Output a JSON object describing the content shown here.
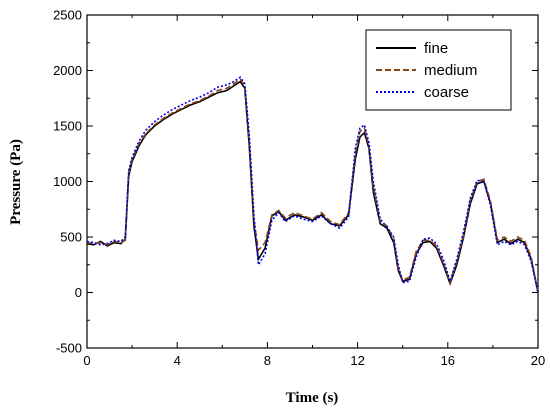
{
  "chart_data": {
    "type": "line",
    "title": "",
    "xlabel": "Time (s)",
    "ylabel": "Pressure (Pa)",
    "xlim": [
      0,
      20
    ],
    "ylim": [
      -500,
      2500
    ],
    "x_ticks": [
      0,
      4,
      8,
      12,
      16,
      20
    ],
    "y_ticks": [
      -500,
      0,
      500,
      1000,
      1500,
      2000,
      2500
    ],
    "grid": false,
    "legend_position": "top-right",
    "series": [
      {
        "name": "fine",
        "color": "#000000",
        "style": "solid",
        "x": [
          0,
          0.3,
          0.6,
          0.9,
          1.2,
          1.5,
          1.7,
          1.85,
          2.0,
          2.3,
          2.6,
          3.0,
          3.4,
          3.8,
          4.2,
          4.6,
          5.0,
          5.4,
          5.8,
          6.2,
          6.5,
          6.8,
          7.0,
          7.2,
          7.4,
          7.6,
          7.9,
          8.2,
          8.5,
          8.8,
          9.2,
          9.6,
          10.0,
          10.4,
          10.8,
          11.2,
          11.6,
          11.9,
          12.1,
          12.3,
          12.5,
          12.7,
          13.0,
          13.3,
          13.6,
          13.8,
          14.0,
          14.3,
          14.6,
          14.9,
          15.2,
          15.5,
          15.8,
          16.1,
          16.4,
          16.7,
          17.0,
          17.3,
          17.6,
          17.9,
          18.2,
          18.5,
          18.8,
          19.1,
          19.4,
          19.7,
          20.0
        ],
        "y": [
          440,
          430,
          460,
          420,
          450,
          440,
          480,
          1050,
          1180,
          1320,
          1420,
          1500,
          1560,
          1610,
          1650,
          1690,
          1720,
          1760,
          1800,
          1820,
          1860,
          1900,
          1840,
          1300,
          600,
          300,
          400,
          690,
          730,
          650,
          700,
          680,
          650,
          700,
          620,
          600,
          700,
          1200,
          1400,
          1440,
          1300,
          900,
          620,
          580,
          450,
          200,
          100,
          120,
          350,
          450,
          460,
          400,
          250,
          80,
          250,
          500,
          800,
          980,
          1000,
          800,
          450,
          480,
          440,
          480,
          450,
          300,
          0
        ]
      },
      {
        "name": "medium",
        "color": "#8b4513",
        "style": "dashed",
        "x": [
          0,
          0.3,
          0.6,
          0.9,
          1.2,
          1.5,
          1.7,
          1.85,
          2.0,
          2.3,
          2.6,
          3.0,
          3.4,
          3.8,
          4.2,
          4.6,
          5.0,
          5.4,
          5.8,
          6.2,
          6.5,
          6.8,
          7.0,
          7.2,
          7.4,
          7.6,
          7.9,
          8.2,
          8.5,
          8.8,
          9.2,
          9.6,
          10.0,
          10.4,
          10.8,
          11.2,
          11.6,
          11.9,
          12.1,
          12.3,
          12.5,
          12.7,
          13.0,
          13.3,
          13.6,
          13.8,
          14.0,
          14.3,
          14.6,
          14.9,
          15.2,
          15.5,
          15.8,
          16.1,
          16.4,
          16.7,
          17.0,
          17.3,
          17.6,
          17.9,
          18.2,
          18.5,
          18.8,
          19.1,
          19.4,
          19.7,
          20.0
        ],
        "y": [
          450,
          440,
          450,
          430,
          460,
          450,
          470,
          1080,
          1200,
          1340,
          1430,
          1510,
          1570,
          1620,
          1660,
          1700,
          1730,
          1770,
          1820,
          1840,
          1880,
          1920,
          1860,
          1350,
          650,
          380,
          450,
          700,
          740,
          670,
          720,
          690,
          660,
          720,
          640,
          610,
          720,
          1250,
          1450,
          1480,
          1320,
          950,
          640,
          600,
          480,
          220,
          110,
          140,
          370,
          470,
          470,
          420,
          270,
          90,
          280,
          520,
          830,
          1000,
          1020,
          820,
          470,
          500,
          460,
          500,
          470,
          320,
          0
        ]
      },
      {
        "name": "coarse",
        "color": "#0000ee",
        "style": "dotted",
        "x": [
          0,
          0.3,
          0.6,
          0.9,
          1.2,
          1.5,
          1.7,
          1.85,
          2.0,
          2.3,
          2.6,
          3.0,
          3.4,
          3.8,
          4.2,
          4.6,
          5.0,
          5.4,
          5.8,
          6.2,
          6.5,
          6.8,
          7.0,
          7.2,
          7.4,
          7.6,
          7.9,
          8.2,
          8.5,
          8.8,
          9.2,
          9.6,
          10.0,
          10.4,
          10.8,
          11.2,
          11.6,
          11.9,
          12.1,
          12.3,
          12.5,
          12.7,
          13.0,
          13.3,
          13.6,
          13.8,
          14.0,
          14.3,
          14.6,
          14.9,
          15.2,
          15.5,
          15.8,
          16.1,
          16.4,
          16.7,
          17.0,
          17.3,
          17.6,
          17.9,
          18.2,
          18.5,
          18.8,
          19.1,
          19.4,
          19.7,
          20.0
        ],
        "y": [
          460,
          450,
          430,
          440,
          470,
          460,
          500,
          1100,
          1220,
          1360,
          1460,
          1540,
          1600,
          1650,
          1690,
          1730,
          1760,
          1800,
          1850,
          1870,
          1900,
          1940,
          1880,
          1400,
          700,
          250,
          350,
          650,
          720,
          640,
          690,
          660,
          640,
          690,
          620,
          580,
          680,
          1300,
          1480,
          1510,
          1350,
          1000,
          660,
          590,
          500,
          250,
          90,
          100,
          320,
          480,
          490,
          440,
          300,
          100,
          300,
          550,
          850,
          1010,
          1000,
          780,
          430,
          460,
          430,
          460,
          430,
          280,
          0
        ]
      }
    ]
  }
}
